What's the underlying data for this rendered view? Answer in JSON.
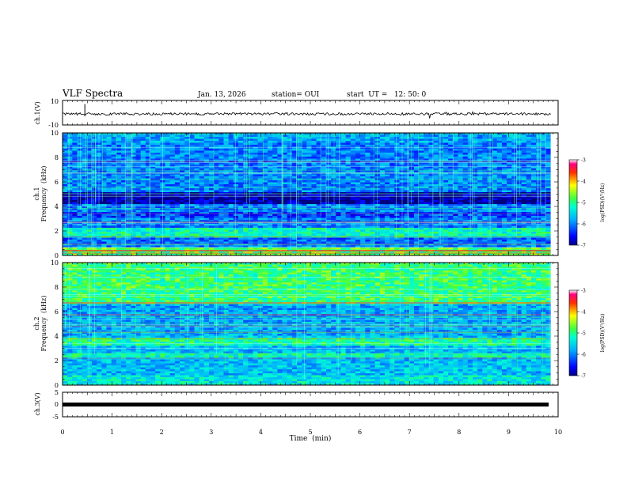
{
  "header": {
    "title": "VLF Spectra",
    "date": "Jan. 13, 2026",
    "station": "station= OUI",
    "start": "start  UT =   12: 50: 0"
  },
  "chart_data": [
    {
      "type": "line",
      "panel": "ch1-waveform",
      "ylabel": "ch.1(V)",
      "ylim": [
        -10,
        10
      ],
      "y_tick_labels": [
        "10",
        "-10"
      ],
      "series": [
        {
          "values_summary": "noise band around -1 V, amplitude ~1 V"
        }
      ]
    },
    {
      "type": "heatmap",
      "panel": "ch1-spectrogram",
      "ylabel_line1": "ch.1",
      "ylabel_line2": "Frequency  (kHz)",
      "xlim": [
        0,
        10
      ],
      "ylim": [
        0,
        10
      ],
      "y_ticks": [
        0,
        2,
        4,
        6,
        8,
        10
      ],
      "x_range_data_min": [
        0,
        9.85
      ],
      "colorbar": {
        "label": "log(PSD)(V²/Hz)",
        "range": [
          -7,
          -3
        ],
        "ticks": [
          -7,
          -6,
          -5,
          -4,
          -3
        ],
        "tick_labels": [
          "-7",
          "-6",
          "-5",
          "-4",
          "-3"
        ]
      },
      "features": "dense vertical impulsive lines 0-10 kHz, dark band 4-5 kHz, enhanced emission below 2 kHz, red line near 0.4 kHz"
    },
    {
      "type": "heatmap",
      "panel": "ch2-spectrogram",
      "ylabel_line1": "ch.2",
      "ylabel_line2": "Frequency  (kHz)",
      "xlim": [
        0,
        10
      ],
      "ylim": [
        0,
        10
      ],
      "y_ticks": [
        0,
        2,
        4,
        6,
        8,
        10
      ],
      "colorbar": {
        "label": "log(PSD)(V²/Hz)",
        "range": [
          -7,
          -3
        ],
        "ticks": [
          -7,
          -6,
          -5,
          -4,
          -3
        ],
        "tick_labels": [
          "-7",
          "-6",
          "-5",
          "-4",
          "-3"
        ]
      },
      "features": "strong green/yellow emission 6.5-10 kHz, band near 3.5 kHz, line near 2.4 kHz"
    },
    {
      "type": "line",
      "panel": "ch3-waveform",
      "ylabel": "ch.3(V)",
      "ylim": [
        -5,
        5
      ],
      "y_tick_labels": [
        "5",
        "0",
        "-5"
      ],
      "series": [
        {
          "values_summary": "flat thick line at about -1 V"
        }
      ]
    }
  ],
  "x_axis": {
    "label": "Time  (min)",
    "ticks": [
      0,
      1,
      2,
      3,
      4,
      5,
      6,
      7,
      8,
      9,
      10
    ],
    "tick_labels": [
      "0",
      "1",
      "2",
      "3",
      "4",
      "5",
      "6",
      "7",
      "8",
      "9",
      "10"
    ]
  }
}
